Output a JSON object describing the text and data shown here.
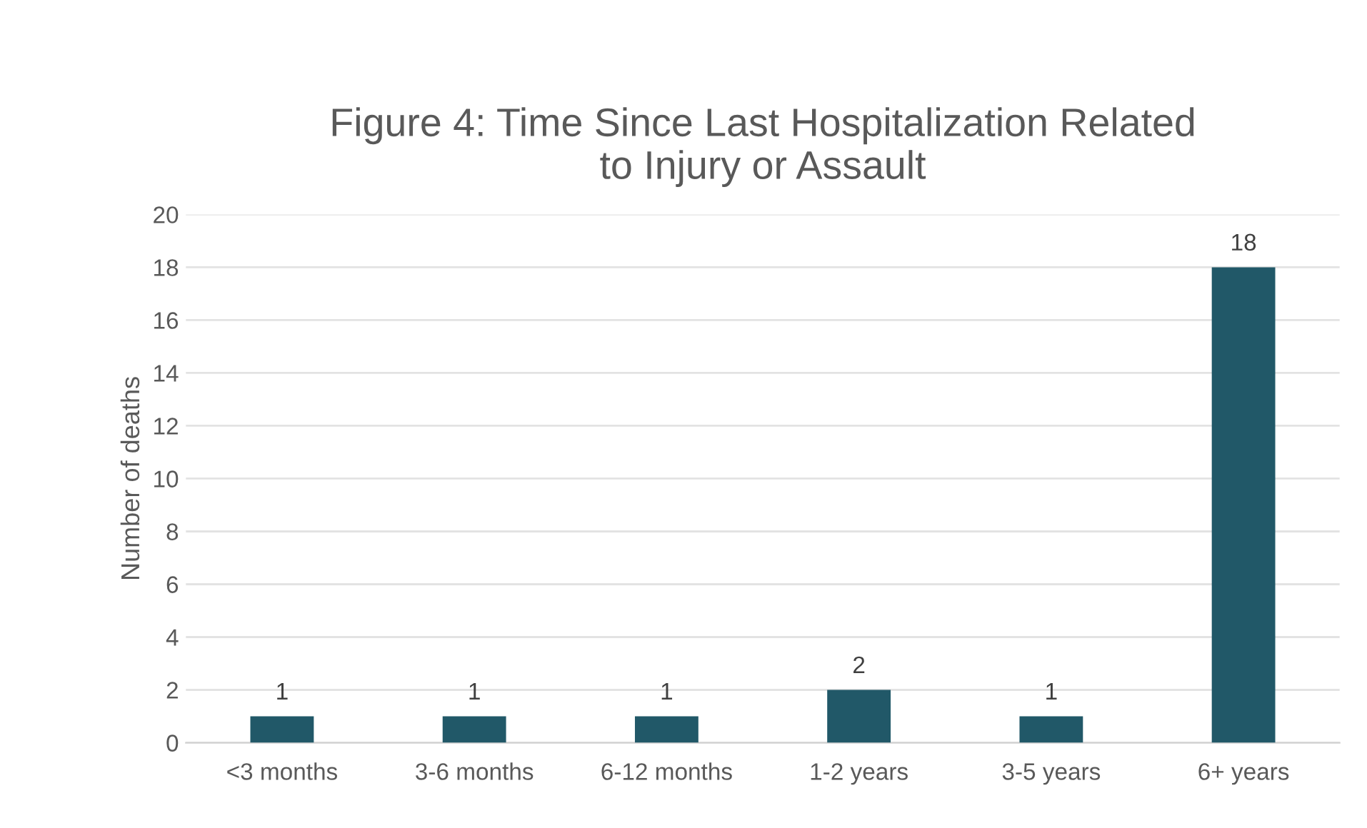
{
  "chart_data": {
    "type": "bar",
    "title": "Figure 4: Time Since Last Hospitalization Related\nto Injury or Assault",
    "ylabel": "Number of deaths",
    "categories": [
      "<3 months",
      "3-6 months",
      "6-12 months",
      "1-2 years",
      "3-5 years",
      "6+ years"
    ],
    "values": [
      1,
      1,
      1,
      2,
      1,
      18
    ],
    "color": "#215868",
    "ylim": [
      0,
      20
    ],
    "yticks": [
      0,
      2,
      4,
      6,
      8,
      10,
      12,
      14,
      16,
      18,
      20
    ],
    "grid": "y",
    "data_labels": true
  }
}
